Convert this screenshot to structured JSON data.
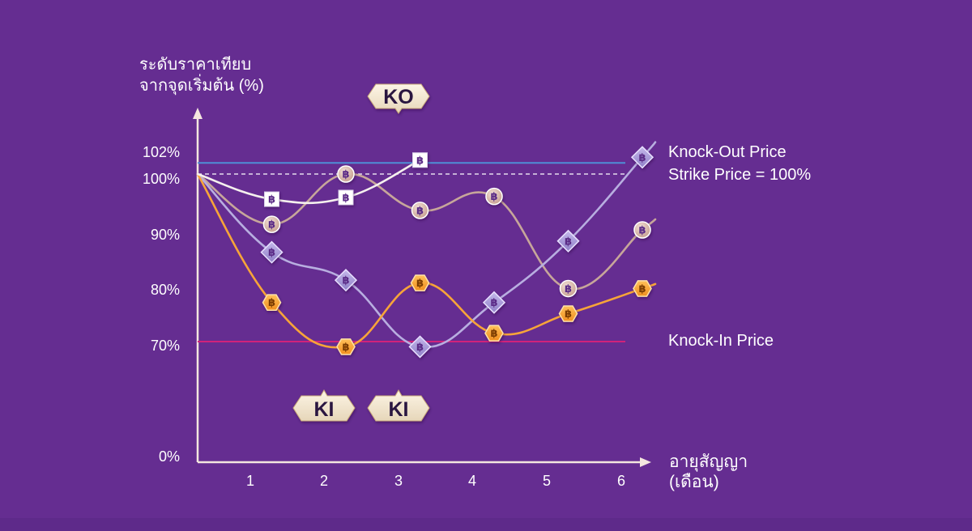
{
  "chart_data": {
    "type": "line",
    "ylabel": [
      "ระดับราคาเทียบ",
      "จากจุดเริ่มต้น (%)"
    ],
    "xlabel": [
      "อายุสัญญา",
      "(เดือน)"
    ],
    "y_ticks": [
      "102%",
      "100%",
      "90%",
      "80%",
      "70%",
      "0%"
    ],
    "x_ticks": [
      "1",
      "2",
      "3",
      "4",
      "5",
      "6"
    ],
    "reference_lines": [
      {
        "label": "Knock-Out Price",
        "value": 102,
        "color": "#4f8fd6",
        "style": "solid"
      },
      {
        "label": "Strike Price = 100%",
        "value": 100,
        "color": "#ffffff",
        "style": "dashed"
      },
      {
        "label": "Knock-In Price",
        "value": 70,
        "color": "#d0237a",
        "style": "solid"
      }
    ],
    "series": [
      {
        "marker": "square",
        "color": "#f5f0ee",
        "x": [
          0,
          1,
          2,
          3
        ],
        "y": [
          100,
          95.5,
          95.8,
          102.5
        ]
      },
      {
        "marker": "circle",
        "color": "#dcc0b4",
        "line_color": "#c7a69a",
        "x": [
          0,
          1,
          2,
          3,
          4,
          5,
          6
        ],
        "y": [
          100,
          91,
          100,
          93.5,
          96,
          79.5,
          90
        ]
      },
      {
        "marker": "diamond",
        "color": "#a899d6",
        "line_color": "#b8aee0",
        "x": [
          0,
          1,
          2,
          3,
          4,
          5,
          6
        ],
        "y": [
          100,
          86,
          81,
          67,
          77,
          88,
          103
        ]
      },
      {
        "marker": "hexagon",
        "color": "#f7a439",
        "line_color": "#f7a439",
        "x": [
          0,
          1,
          2,
          3,
          4,
          5,
          6
        ],
        "y": [
          100,
          77,
          67,
          80.5,
          71.5,
          75,
          79.5
        ]
      }
    ],
    "events": [
      {
        "label": "KO",
        "x": 3
      },
      {
        "label": "KI",
        "x": 2
      },
      {
        "label": "KI",
        "x": 3
      }
    ],
    "marker_symbol": "฿",
    "ylim": [
      0,
      105
    ],
    "xlim": [
      0,
      6
    ]
  }
}
